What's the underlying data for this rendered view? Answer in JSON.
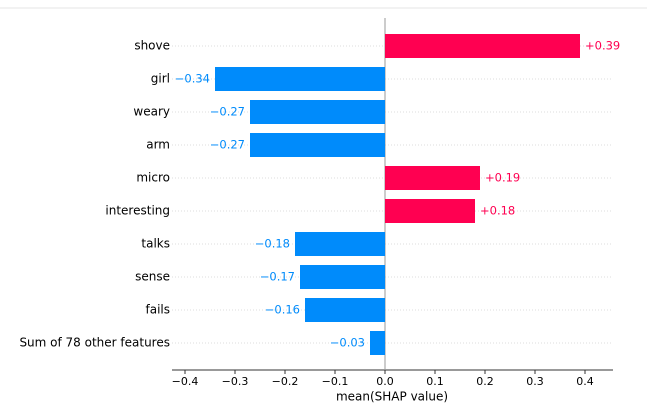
{
  "chart_data": {
    "type": "bar",
    "orientation": "horizontal",
    "xlabel": "mean(SHAP value)",
    "categories": [
      "shove",
      "girl",
      "weary",
      "arm",
      "micro",
      "interesting",
      "talks",
      "sense",
      "fails",
      "Sum of 78 other features"
    ],
    "values": [
      0.39,
      -0.34,
      -0.27,
      -0.27,
      0.19,
      0.18,
      -0.18,
      -0.17,
      -0.16,
      -0.03
    ],
    "value_labels": [
      "+0.39",
      "−0.34",
      "−0.27",
      "−0.27",
      "+0.19",
      "+0.18",
      "−0.18",
      "−0.17",
      "−0.16",
      "−0.03"
    ],
    "colors": {
      "positive": "#ff0051",
      "negative": "#008bfb"
    },
    "xlim": [
      -0.426,
      0.456
    ],
    "xticks": [
      {
        "value": -0.4,
        "label": "−0.4"
      },
      {
        "value": -0.3,
        "label": "−0.3"
      },
      {
        "value": -0.2,
        "label": "−0.2"
      },
      {
        "value": -0.1,
        "label": "−0.1"
      },
      {
        "value": 0,
        "label": "0.0"
      },
      0.1,
      0.2,
      0.3,
      0.4
    ],
    "grid": true
  }
}
